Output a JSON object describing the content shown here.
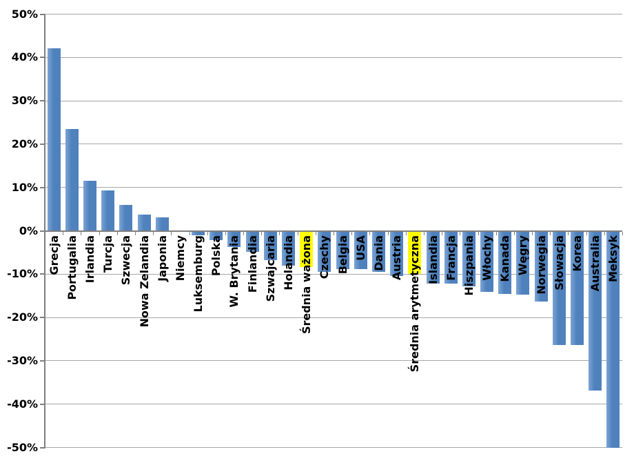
{
  "chart_data": {
    "type": "bar",
    "title": "",
    "subtitle": "",
    "xlabel": "",
    "ylabel": "",
    "unit": "%",
    "legend_position": "none",
    "grid": true,
    "ylim": [
      -50,
      50
    ],
    "ytick_step": 10,
    "ytick_labels": [
      "50%",
      "40%",
      "30%",
      "20%",
      "10%",
      "0%",
      "-10%",
      "-20%",
      "-30%",
      "-40%",
      "-50%"
    ],
    "bar_color": "#4F81BD",
    "highlight_color": "#FFFF00",
    "gridline_color": "#A6A6A6",
    "axis_color": "#7F7F7F",
    "background_color": "#FFFFFF",
    "categories": [
      "Grecja",
      "Portugalia",
      "Irlandia",
      "Turcja",
      "Szwecja",
      "Nowa Zelandia",
      "Japonia",
      "Niemcy",
      "Luksemburg",
      "Polska",
      "W. Brytania",
      "Finlandia",
      "Szwajcaria",
      "Holandia",
      "Średnia ważona",
      "Czechy",
      "Belgia",
      "USA",
      "Dania",
      "Austria",
      "Średnia arytmetyczna",
      "Islandia",
      "Francja",
      "Hiszpania",
      "Włochy",
      "Kanada",
      "Węgry",
      "Norwegia",
      "Słowacja",
      "Korea",
      "Australia",
      "Meksyk"
    ],
    "values": [
      42.1,
      23.5,
      11.5,
      9.3,
      6.0,
      3.8,
      3.1,
      0.0,
      -1.0,
      -2.1,
      -3.8,
      -4.9,
      -6.7,
      -8.0,
      -8.3,
      -9.5,
      -8.8,
      -8.8,
      -9.4,
      -10.5,
      -10.0,
      -12.2,
      -12.2,
      -12.8,
      -14.1,
      -14.5,
      -14.7,
      -16.4,
      -26.4,
      -26.4,
      -36.8,
      -50.0
    ],
    "highlighted_indices": [
      14,
      20
    ],
    "highlighted_categories": [
      "Średnia ważona",
      "Średnia arytmetyczna"
    ]
  }
}
